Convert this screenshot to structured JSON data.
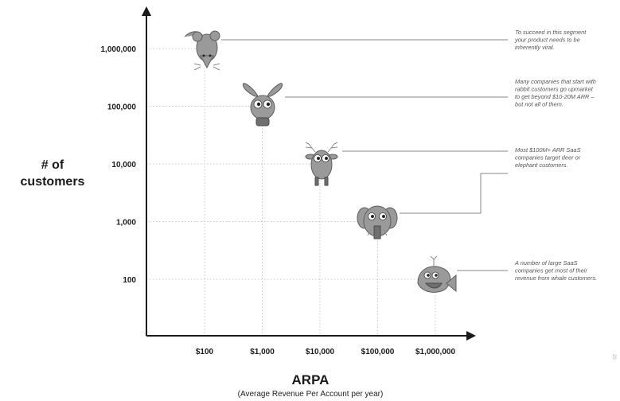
{
  "chart_data": {
    "type": "scatter",
    "title": "",
    "xlabel": "ARPA",
    "xlabel_sub": "(Average Revenue Per Account per year)",
    "ylabel_lines": [
      "# of",
      "customers"
    ],
    "x_scale": "log",
    "y_scale": "log",
    "x_ticks": [
      {
        "value": 100,
        "label": "$100"
      },
      {
        "value": 1000,
        "label": "$1,000"
      },
      {
        "value": 10000,
        "label": "$10,000"
      },
      {
        "value": 100000,
        "label": "$100,000"
      },
      {
        "value": 1000000,
        "label": "$1,000,000"
      }
    ],
    "y_ticks": [
      {
        "value": 100,
        "label": "100"
      },
      {
        "value": 1000,
        "label": "1,000"
      },
      {
        "value": 10000,
        "label": "10,000"
      },
      {
        "value": 100000,
        "label": "100,000"
      },
      {
        "value": 1000000,
        "label": "1,000,000"
      }
    ],
    "grid": "dotted guide lines from each point to the axes",
    "points": [
      {
        "animal": "mouse",
        "icon": "mouse-icon",
        "x": 100,
        "y": 1000000
      },
      {
        "animal": "rabbit",
        "icon": "rabbit-icon",
        "x": 1000,
        "y": 100000
      },
      {
        "animal": "deer",
        "icon": "deer-icon",
        "x": 10000,
        "y": 10000
      },
      {
        "animal": "elephant",
        "icon": "elephant-icon",
        "x": 100000,
        "y": 1000
      },
      {
        "animal": "whale",
        "icon": "whale-icon",
        "x": 1000000,
        "y": 100
      }
    ],
    "annotations": [
      {
        "lines": [
          "To succeed in this segment",
          "your product needs to be",
          "inherently viral."
        ]
      },
      {
        "lines": [
          "Many companies that start with",
          "rabbit customers go upmarket",
          "to get beyond $10-20M ARR –",
          "but not all of them."
        ]
      },
      {
        "lines": [
          "Most $100M+ ARR SaaS",
          "companies target deer or",
          "elephant customers."
        ]
      },
      {
        "lines": [
          "A number of large SaaS",
          "companies get most of their",
          "revenue from whale customers."
        ]
      }
    ],
    "colors": {
      "axis": "#1a1a1a",
      "animal": "#9a9a9a",
      "leader": "#8a8a8a",
      "note": "#555555"
    }
  },
  "side_mark": "20"
}
